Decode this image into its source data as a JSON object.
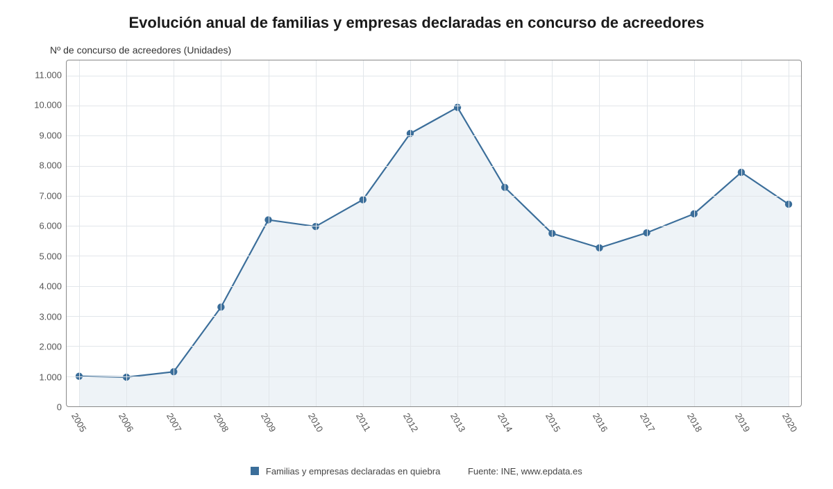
{
  "chart": {
    "type": "line-area",
    "title": "Evolución anual de familias y empresas declaradas en concurso de acreedores",
    "title_fontsize": 22,
    "ylabel": "Nº de concurso de acreedores (Unidades)",
    "ylabel_fontsize": 14,
    "background_color": "#ffffff",
    "plot_border_color": "#888888",
    "grid_color": "#e2e6ea",
    "series_color": "#3b6e9a",
    "area_fill": "#eef3f7",
    "marker_color": "#3b6e9a",
    "marker_size": 5.2,
    "line_width": 2.2,
    "tick_fontsize": 13,
    "ylim": [
      0,
      11500
    ],
    "ytick_step": 1000,
    "ytick_max_label": 11000,
    "yticks": [
      "0",
      "1.000",
      "2.000",
      "3.000",
      "4.000",
      "5.000",
      "6.000",
      "7.000",
      "8.000",
      "9.000",
      "10.000",
      "11.000"
    ],
    "x_labels": [
      "2005",
      "2006",
      "2007",
      "2008",
      "2009",
      "2010",
      "2011",
      "2012",
      "2013",
      "2014",
      "2015",
      "2016",
      "2017",
      "2018",
      "2019",
      "2020"
    ],
    "x_rotation_deg": 60,
    "values": [
      1000,
      970,
      1150,
      3300,
      6200,
      5980,
      6870,
      9070,
      9940,
      7280,
      5750,
      5270,
      5770,
      6400,
      7780,
      6720
    ]
  },
  "legend": {
    "label": "Familias y empresas declaradas en quiebra",
    "swatch_color": "#3b6e9a"
  },
  "source": {
    "prefix": "Fuente: ",
    "text": "INE, www.epdata.es"
  }
}
